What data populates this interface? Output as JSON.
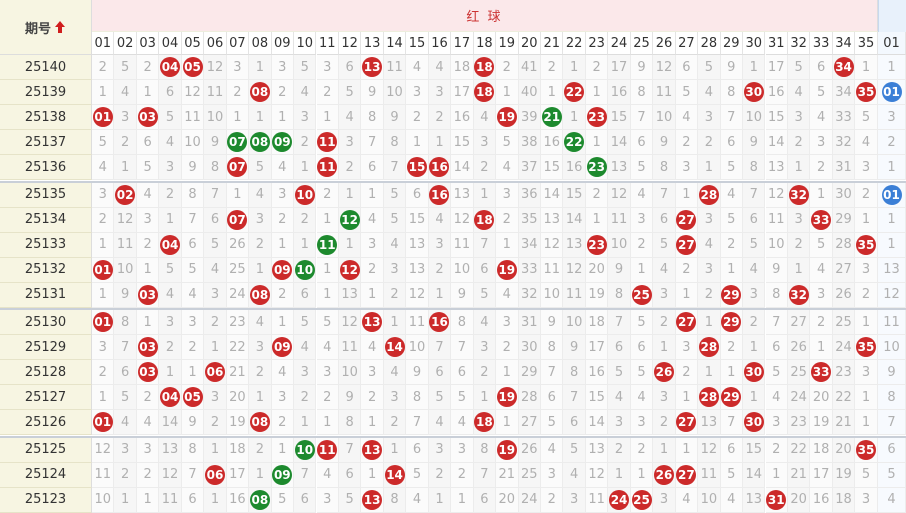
{
  "header": {
    "period_label": "期号",
    "red_title": "红 球",
    "red_numbers": [
      "01",
      "02",
      "03",
      "04",
      "05",
      "06",
      "07",
      "08",
      "09",
      "10",
      "11",
      "12",
      "13",
      "14",
      "15",
      "16",
      "17",
      "18",
      "19",
      "20",
      "21",
      "22",
      "23",
      "24",
      "25",
      "26",
      "27",
      "28",
      "29",
      "30",
      "31",
      "32",
      "33",
      "34",
      "35"
    ],
    "blue_numbers": [
      "01"
    ]
  },
  "rows": [
    {
      "period": "25140",
      "red": [
        2,
        5,
        2,
        {
          "text": "04",
          "color": "#cc2a2a"
        },
        {
          "text": "05",
          "color": "#cc2a2a"
        },
        12,
        3,
        1,
        3,
        5,
        3,
        6,
        {
          "text": "13",
          "color": "#cc2a2a"
        },
        11,
        4,
        4,
        18,
        {
          "text": "18",
          "color": "#cc2a2a"
        },
        2,
        41,
        2,
        1,
        2,
        17,
        9,
        12,
        6,
        5,
        9,
        1,
        17,
        5,
        6,
        {
          "text": "34",
          "color": "#cc2a2a"
        },
        1
      ],
      "blue": [
        1
      ]
    },
    {
      "period": "25139",
      "red": [
        1,
        4,
        1,
        6,
        12,
        11,
        2,
        {
          "text": "08",
          "color": "#cc2a2a"
        },
        2,
        4,
        2,
        5,
        9,
        10,
        3,
        3,
        17,
        {
          "text": "18",
          "color": "#cc2a2a"
        },
        1,
        40,
        1,
        {
          "text": "22",
          "color": "#cc2a2a"
        },
        1,
        16,
        8,
        11,
        5,
        4,
        8,
        {
          "text": "30",
          "color": "#cc2a2a"
        },
        16,
        4,
        5,
        34,
        {
          "text": "35",
          "color": "#cc2a2a"
        }
      ],
      "blue": [
        {
          "text": "01",
          "color": "#3b7fd6"
        }
      ]
    },
    {
      "period": "25138",
      "red": [
        {
          "text": "01",
          "color": "#cc2a2a"
        },
        3,
        {
          "text": "03",
          "color": "#cc2a2a"
        },
        5,
        11,
        10,
        1,
        1,
        1,
        3,
        1,
        4,
        8,
        9,
        2,
        2,
        16,
        4,
        {
          "text": "19",
          "color": "#cc2a2a"
        },
        39,
        {
          "text": "21",
          "color": "#1d8a2e"
        },
        1,
        {
          "text": "23",
          "color": "#cc2a2a"
        },
        15,
        7,
        10,
        4,
        3,
        7,
        10,
        15,
        3,
        4,
        33,
        5
      ],
      "blue": [
        3
      ]
    },
    {
      "period": "25137",
      "red": [
        5,
        2,
        6,
        4,
        10,
        9,
        {
          "text": "07",
          "color": "#1d8a2e"
        },
        {
          "text": "08",
          "color": "#1d8a2e"
        },
        {
          "text": "09",
          "color": "#1d8a2e"
        },
        2,
        {
          "text": "11",
          "color": "#cc2a2a"
        },
        3,
        7,
        8,
        1,
        1,
        15,
        3,
        5,
        38,
        16,
        {
          "text": "22",
          "color": "#1d8a2e"
        },
        1,
        14,
        6,
        9,
        2,
        2,
        6,
        9,
        14,
        2,
        3,
        32,
        4
      ],
      "blue": [
        2
      ]
    },
    {
      "period": "25136",
      "red": [
        4,
        1,
        5,
        3,
        9,
        8,
        {
          "text": "07",
          "color": "#cc2a2a"
        },
        5,
        4,
        1,
        {
          "text": "11",
          "color": "#cc2a2a"
        },
        2,
        6,
        7,
        {
          "text": "15",
          "color": "#cc2a2a"
        },
        {
          "text": "16",
          "color": "#cc2a2a"
        },
        14,
        2,
        4,
        37,
        15,
        16,
        {
          "text": "23",
          "color": "#1d8a2e"
        },
        13,
        5,
        8,
        3,
        1,
        5,
        8,
        13,
        1,
        2,
        31,
        3
      ],
      "blue": [
        1
      ]
    },
    {
      "period": "25135",
      "red": [
        3,
        {
          "text": "02",
          "color": "#cc2a2a"
        },
        4,
        2,
        8,
        7,
        1,
        4,
        3,
        {
          "text": "10",
          "color": "#cc2a2a"
        },
        2,
        1,
        1,
        5,
        6,
        {
          "text": "16",
          "color": "#cc2a2a"
        },
        13,
        1,
        3,
        36,
        14,
        15,
        2,
        12,
        4,
        7,
        1,
        {
          "text": "28",
          "color": "#cc2a2a"
        },
        4,
        7,
        12,
        {
          "text": "32",
          "color": "#cc2a2a"
        },
        1,
        30,
        2
      ],
      "blue": [
        {
          "text": "01",
          "color": "#3b7fd6"
        }
      ]
    },
    {
      "period": "25134",
      "red": [
        2,
        12,
        3,
        1,
        7,
        6,
        {
          "text": "07",
          "color": "#cc2a2a"
        },
        3,
        2,
        2,
        1,
        {
          "text": "12",
          "color": "#1d8a2e"
        },
        4,
        5,
        15,
        4,
        12,
        {
          "text": "18",
          "color": "#cc2a2a"
        },
        2,
        35,
        13,
        14,
        1,
        11,
        3,
        6,
        {
          "text": "27",
          "color": "#cc2a2a"
        },
        3,
        5,
        6,
        11,
        3,
        {
          "text": "33",
          "color": "#cc2a2a"
        },
        29,
        1
      ],
      "blue": [
        1
      ]
    },
    {
      "period": "25133",
      "red": [
        1,
        11,
        2,
        {
          "text": "04",
          "color": "#cc2a2a"
        },
        6,
        5,
        26,
        2,
        1,
        1,
        {
          "text": "11",
          "color": "#1d8a2e"
        },
        1,
        3,
        4,
        13,
        3,
        11,
        7,
        1,
        34,
        12,
        13,
        {
          "text": "23",
          "color": "#cc2a2a"
        },
        10,
        2,
        5,
        {
          "text": "27",
          "color": "#cc2a2a"
        },
        4,
        2,
        5,
        10,
        2,
        5,
        28,
        {
          "text": "35",
          "color": "#cc2a2a"
        }
      ],
      "blue": [
        1
      ]
    },
    {
      "period": "25132",
      "red": [
        {
          "text": "01",
          "color": "#cc2a2a"
        },
        10,
        1,
        5,
        5,
        4,
        25,
        1,
        {
          "text": "09",
          "color": "#cc2a2a"
        },
        {
          "text": "10",
          "color": "#1d8a2e"
        },
        1,
        {
          "text": "12",
          "color": "#cc2a2a"
        },
        2,
        3,
        13,
        2,
        10,
        6,
        {
          "text": "19",
          "color": "#cc2a2a"
        },
        33,
        11,
        12,
        20,
        9,
        1,
        4,
        2,
        3,
        1,
        4,
        9,
        1,
        4,
        27,
        3
      ],
      "blue": [
        13
      ]
    },
    {
      "period": "25131",
      "red": [
        1,
        9,
        {
          "text": "03",
          "color": "#cc2a2a"
        },
        4,
        4,
        3,
        24,
        {
          "text": "08",
          "color": "#cc2a2a"
        },
        2,
        6,
        1,
        13,
        1,
        2,
        12,
        1,
        9,
        5,
        4,
        32,
        10,
        11,
        19,
        8,
        {
          "text": "25",
          "color": "#cc2a2a"
        },
        3,
        1,
        2,
        {
          "text": "29",
          "color": "#cc2a2a"
        },
        3,
        8,
        {
          "text": "32",
          "color": "#cc2a2a"
        },
        3,
        26,
        2
      ],
      "blue": [
        12
      ]
    },
    {
      "period": "25130",
      "red": [
        {
          "text": "01",
          "color": "#cc2a2a"
        },
        8,
        1,
        3,
        3,
        2,
        23,
        4,
        1,
        5,
        5,
        12,
        {
          "text": "13",
          "color": "#cc2a2a"
        },
        1,
        11,
        {
          "text": "16",
          "color": "#cc2a2a"
        },
        8,
        4,
        3,
        31,
        9,
        10,
        18,
        7,
        5,
        2,
        {
          "text": "27",
          "color": "#cc2a2a"
        },
        1,
        {
          "text": "29",
          "color": "#cc2a2a"
        },
        2,
        7,
        27,
        2,
        25,
        1
      ],
      "blue": [
        11
      ]
    },
    {
      "period": "25129",
      "red": [
        3,
        7,
        {
          "text": "03",
          "color": "#cc2a2a"
        },
        2,
        2,
        1,
        22,
        3,
        {
          "text": "09",
          "color": "#cc2a2a"
        },
        4,
        4,
        11,
        4,
        {
          "text": "14",
          "color": "#cc2a2a"
        },
        10,
        7,
        7,
        3,
        2,
        30,
        8,
        9,
        17,
        6,
        6,
        1,
        3,
        {
          "text": "28",
          "color": "#cc2a2a"
        },
        2,
        1,
        6,
        26,
        1,
        24,
        {
          "text": "35",
          "color": "#cc2a2a"
        }
      ],
      "blue": [
        10
      ]
    },
    {
      "period": "25128",
      "red": [
        2,
        6,
        {
          "text": "03",
          "color": "#cc2a2a"
        },
        1,
        1,
        {
          "text": "06",
          "color": "#cc2a2a"
        },
        21,
        2,
        4,
        3,
        3,
        10,
        3,
        4,
        9,
        6,
        6,
        2,
        1,
        29,
        7,
        8,
        16,
        5,
        5,
        {
          "text": "26",
          "color": "#cc2a2a"
        },
        2,
        1,
        1,
        {
          "text": "30",
          "color": "#cc2a2a"
        },
        5,
        25,
        {
          "text": "33",
          "color": "#cc2a2a"
        },
        23,
        3
      ],
      "blue": [
        9
      ]
    },
    {
      "period": "25127",
      "red": [
        1,
        5,
        2,
        {
          "text": "04",
          "color": "#cc2a2a"
        },
        {
          "text": "05",
          "color": "#cc2a2a"
        },
        3,
        20,
        1,
        3,
        2,
        2,
        9,
        2,
        3,
        8,
        5,
        5,
        1,
        {
          "text": "19",
          "color": "#cc2a2a"
        },
        28,
        6,
        7,
        15,
        4,
        4,
        3,
        1,
        {
          "text": "28",
          "color": "#cc2a2a"
        },
        {
          "text": "29",
          "color": "#cc2a2a"
        },
        1,
        4,
        24,
        20,
        22,
        1
      ],
      "blue": [
        8
      ]
    },
    {
      "period": "25126",
      "red": [
        {
          "text": "01",
          "color": "#cc2a2a"
        },
        4,
        4,
        14,
        9,
        2,
        19,
        {
          "text": "08",
          "color": "#cc2a2a"
        },
        2,
        1,
        1,
        8,
        1,
        2,
        7,
        4,
        4,
        {
          "text": "18",
          "color": "#cc2a2a"
        },
        1,
        27,
        5,
        6,
        14,
        3,
        3,
        2,
        {
          "text": "27",
          "color": "#cc2a2a"
        },
        13,
        7,
        {
          "text": "30",
          "color": "#cc2a2a"
        },
        3,
        23,
        19,
        21,
        1
      ],
      "blue": [
        7
      ]
    },
    {
      "period": "25125",
      "red": [
        12,
        3,
        3,
        13,
        8,
        1,
        18,
        2,
        1,
        {
          "text": "10",
          "color": "#1d8a2e"
        },
        {
          "text": "11",
          "color": "#cc2a2a"
        },
        7,
        {
          "text": "13",
          "color": "#cc2a2a"
        },
        1,
        6,
        3,
        3,
        8,
        {
          "text": "19",
          "color": "#cc2a2a"
        },
        26,
        4,
        5,
        13,
        2,
        2,
        1,
        1,
        12,
        6,
        15,
        2,
        22,
        18,
        20,
        {
          "text": "35",
          "color": "#cc2a2a"
        }
      ],
      "blue": [
        6
      ]
    },
    {
      "period": "25124",
      "red": [
        11,
        2,
        2,
        12,
        7,
        {
          "text": "06",
          "color": "#cc2a2a"
        },
        17,
        1,
        {
          "text": "09",
          "color": "#1d8a2e"
        },
        7,
        4,
        6,
        1,
        {
          "text": "14",
          "color": "#cc2a2a"
        },
        5,
        2,
        2,
        7,
        21,
        25,
        3,
        4,
        12,
        1,
        1,
        {
          "text": "26",
          "color": "#cc2a2a"
        },
        {
          "text": "27",
          "color": "#cc2a2a"
        },
        11,
        5,
        14,
        1,
        21,
        17,
        19,
        5
      ],
      "blue": [
        5
      ]
    },
    {
      "period": "25123",
      "red": [
        10,
        1,
        1,
        11,
        6,
        1,
        16,
        {
          "text": "08",
          "color": "#1d8a2e"
        },
        5,
        6,
        3,
        5,
        {
          "text": "13",
          "color": "#cc2a2a"
        },
        8,
        4,
        1,
        1,
        6,
        20,
        24,
        2,
        3,
        11,
        {
          "text": "24",
          "color": "#cc2a2a"
        },
        {
          "text": "25",
          "color": "#cc2a2a"
        },
        3,
        4,
        10,
        4,
        13,
        {
          "text": "31",
          "color": "#cc2a2a"
        },
        20,
        16,
        18,
        3
      ],
      "blue": [
        4
      ]
    }
  ]
}
